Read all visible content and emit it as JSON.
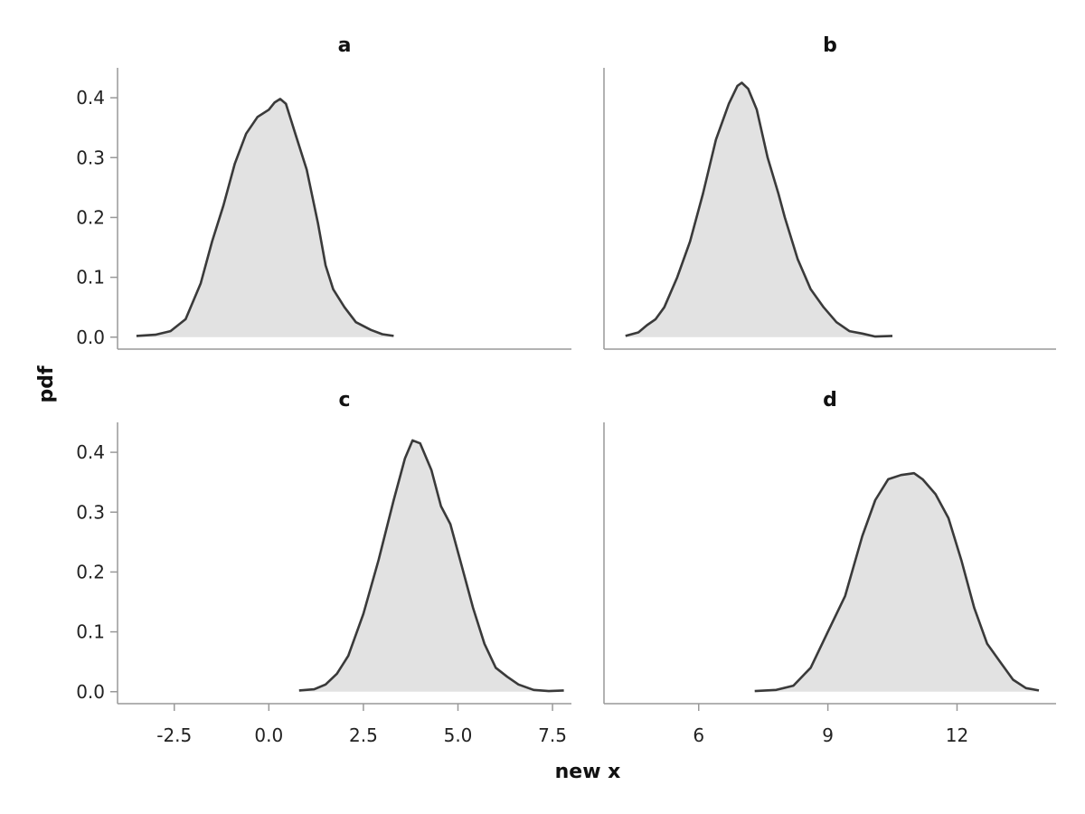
{
  "chart_data": {
    "type": "area",
    "xlabel": "new x",
    "ylabel": "pdf",
    "fill_color": "#e2e2e2",
    "line_color": "#3a3a3a",
    "axis_color": "#999999",
    "grid": false,
    "y_ticks": [
      "0.0",
      "0.1",
      "0.2",
      "0.3",
      "0.4"
    ],
    "panels": [
      {
        "title": "a",
        "xlim": [
          -4.0,
          8.0
        ],
        "ylim": [
          -0.02,
          0.45
        ],
        "x_ticks": [],
        "points": [
          [
            -3.5,
            0.002
          ],
          [
            -3.0,
            0.004
          ],
          [
            -2.6,
            0.01
          ],
          [
            -2.2,
            0.03
          ],
          [
            -1.8,
            0.09
          ],
          [
            -1.5,
            0.16
          ],
          [
            -1.2,
            0.22
          ],
          [
            -0.9,
            0.29
          ],
          [
            -0.6,
            0.34
          ],
          [
            -0.3,
            0.368
          ],
          [
            0.0,
            0.38
          ],
          [
            0.15,
            0.392
          ],
          [
            0.3,
            0.398
          ],
          [
            0.45,
            0.39
          ],
          [
            0.7,
            0.34
          ],
          [
            1.0,
            0.28
          ],
          [
            1.3,
            0.19
          ],
          [
            1.5,
            0.12
          ],
          [
            1.7,
            0.08
          ],
          [
            2.0,
            0.05
          ],
          [
            2.3,
            0.025
          ],
          [
            2.7,
            0.012
          ],
          [
            3.0,
            0.005
          ],
          [
            3.3,
            0.002
          ]
        ]
      },
      {
        "title": "b",
        "xlim": [
          3.8,
          14.3
        ],
        "ylim": [
          -0.02,
          0.45
        ],
        "x_ticks": [],
        "points": [
          [
            4.3,
            0.002
          ],
          [
            4.6,
            0.008
          ],
          [
            4.8,
            0.02
          ],
          [
            5.0,
            0.03
          ],
          [
            5.2,
            0.05
          ],
          [
            5.5,
            0.1
          ],
          [
            5.8,
            0.16
          ],
          [
            6.1,
            0.24
          ],
          [
            6.4,
            0.33
          ],
          [
            6.7,
            0.39
          ],
          [
            6.9,
            0.42
          ],
          [
            7.0,
            0.425
          ],
          [
            7.15,
            0.415
          ],
          [
            7.35,
            0.38
          ],
          [
            7.6,
            0.3
          ],
          [
            7.85,
            0.24
          ],
          [
            8.0,
            0.2
          ],
          [
            8.3,
            0.13
          ],
          [
            8.6,
            0.08
          ],
          [
            8.9,
            0.05
          ],
          [
            9.2,
            0.025
          ],
          [
            9.5,
            0.01
          ],
          [
            9.8,
            0.006
          ],
          [
            10.1,
            0.001
          ],
          [
            10.5,
            0.002
          ]
        ]
      },
      {
        "title": "c",
        "xlim": [
          -4.0,
          8.0
        ],
        "ylim": [
          -0.02,
          0.45
        ],
        "x_ticks": [
          "-2.5",
          "0.0",
          "2.5",
          "5.0",
          "7.5"
        ],
        "x_tick_values": [
          -2.5,
          0.0,
          2.5,
          5.0,
          7.5
        ],
        "points": [
          [
            0.8,
            0.002
          ],
          [
            1.2,
            0.004
          ],
          [
            1.5,
            0.012
          ],
          [
            1.8,
            0.03
          ],
          [
            2.1,
            0.06
          ],
          [
            2.5,
            0.13
          ],
          [
            2.9,
            0.22
          ],
          [
            3.3,
            0.32
          ],
          [
            3.6,
            0.39
          ],
          [
            3.8,
            0.42
          ],
          [
            4.0,
            0.415
          ],
          [
            4.3,
            0.37
          ],
          [
            4.55,
            0.31
          ],
          [
            4.8,
            0.28
          ],
          [
            5.1,
            0.21
          ],
          [
            5.4,
            0.14
          ],
          [
            5.7,
            0.08
          ],
          [
            6.0,
            0.04
          ],
          [
            6.3,
            0.025
          ],
          [
            6.6,
            0.012
          ],
          [
            7.0,
            0.003
          ],
          [
            7.4,
            0.001
          ],
          [
            7.8,
            0.002
          ]
        ]
      },
      {
        "title": "d",
        "xlim": [
          3.8,
          14.3
        ],
        "ylim": [
          -0.02,
          0.45
        ],
        "x_ticks": [
          "6",
          "9",
          "12"
        ],
        "x_tick_values": [
          6,
          9,
          12
        ],
        "points": [
          [
            7.3,
            0.001
          ],
          [
            7.8,
            0.003
          ],
          [
            8.2,
            0.01
          ],
          [
            8.6,
            0.04
          ],
          [
            9.0,
            0.1
          ],
          [
            9.4,
            0.16
          ],
          [
            9.8,
            0.26
          ],
          [
            10.1,
            0.32
          ],
          [
            10.4,
            0.355
          ],
          [
            10.7,
            0.362
          ],
          [
            11.0,
            0.365
          ],
          [
            11.2,
            0.355
          ],
          [
            11.5,
            0.33
          ],
          [
            11.8,
            0.29
          ],
          [
            12.1,
            0.22
          ],
          [
            12.4,
            0.14
          ],
          [
            12.7,
            0.08
          ],
          [
            13.0,
            0.05
          ],
          [
            13.3,
            0.02
          ],
          [
            13.6,
            0.006
          ],
          [
            13.9,
            0.002
          ]
        ]
      }
    ]
  }
}
